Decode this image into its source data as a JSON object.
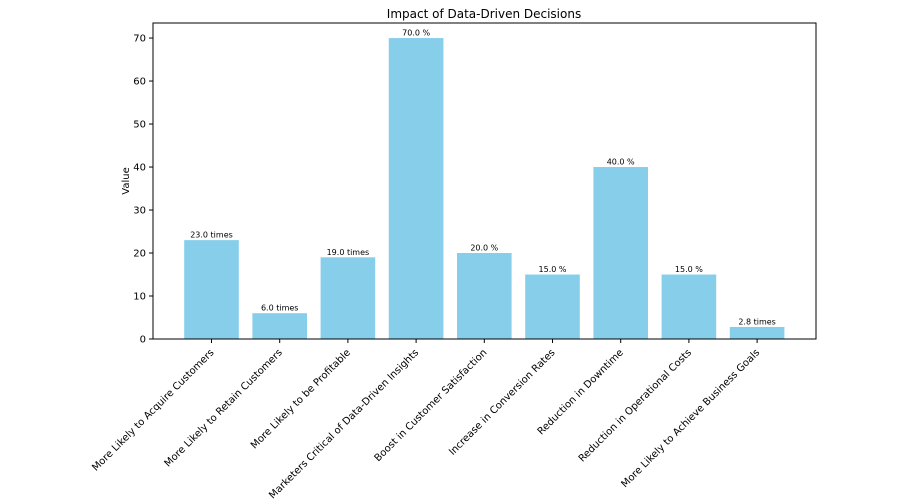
{
  "chart_data": {
    "type": "bar",
    "title": "Impact of Data-Driven Decisions",
    "xlabel": "",
    "ylabel": "Value",
    "ylim": [
      0,
      73.5
    ],
    "yticks": [
      0,
      10,
      20,
      30,
      40,
      50,
      60,
      70
    ],
    "grid": false,
    "bar_color": "#87CEEB",
    "categories": [
      "More Likely to Acquire Customers",
      "More Likely to Retain Customers",
      "More Likely to be Profitable",
      "Marketers Critical of Data-Driven Insights",
      "Boost in Customer Satisfaction",
      "Increase in Conversion Rates",
      "Reduction in Downtime",
      "Reduction in Operational Costs",
      "More Likely to Achieve Business Goals"
    ],
    "values": [
      23.0,
      6.0,
      19.0,
      70.0,
      20.0,
      15.0,
      40.0,
      15.0,
      2.8
    ],
    "data_labels": [
      "23.0 times",
      "6.0 times",
      "19.0 times",
      "70.0 %",
      "20.0 %",
      "15.0 %",
      "40.0 %",
      "15.0 %",
      "2.8 times"
    ]
  }
}
